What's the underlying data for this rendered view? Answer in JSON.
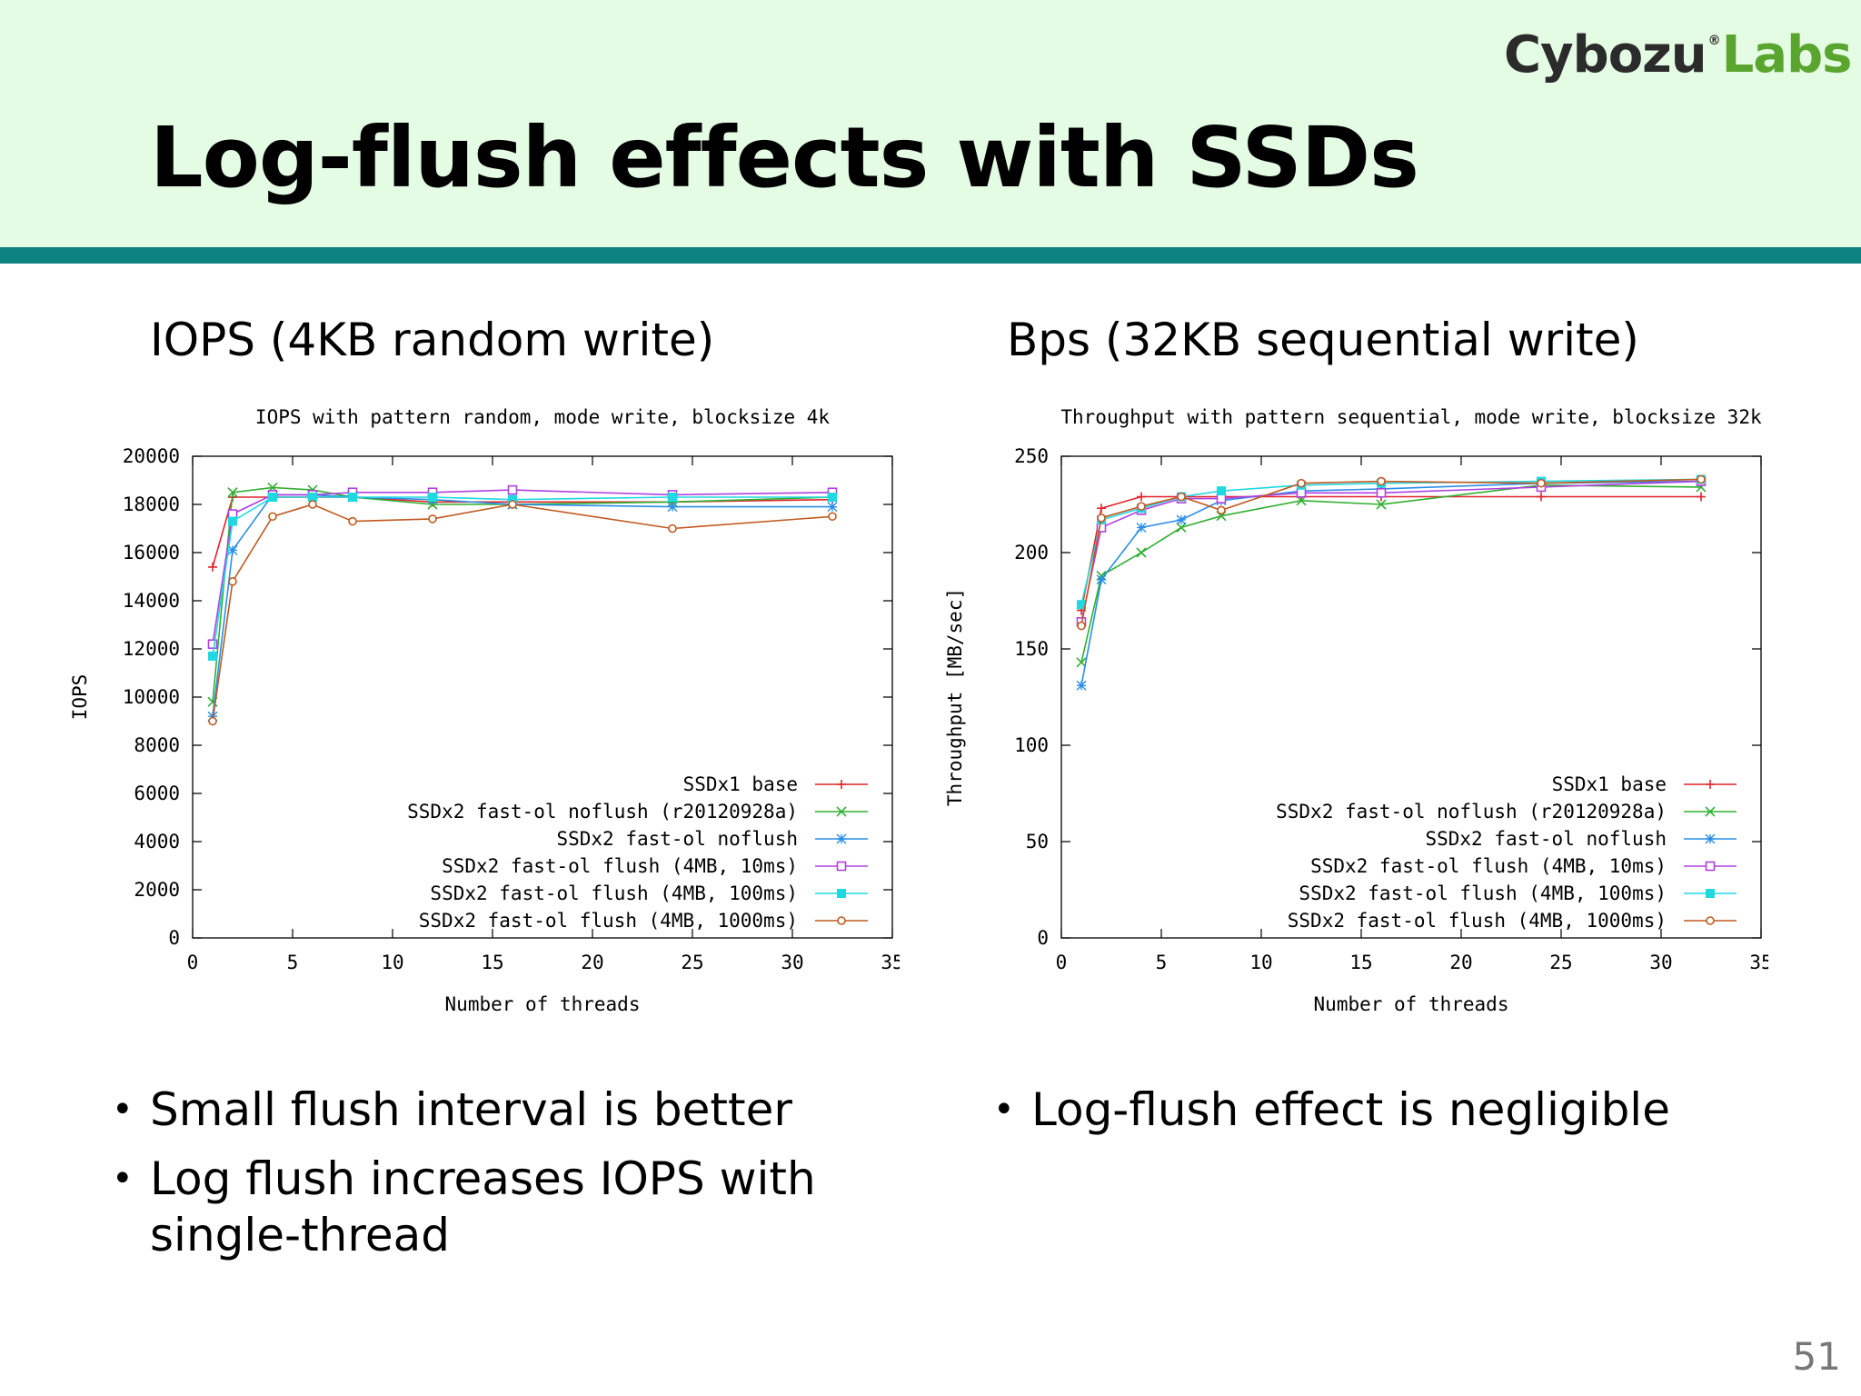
{
  "slide": {
    "title": "Log-flush effects with SSDs",
    "logo_part1": "Cybozu",
    "logo_mark": "®",
    "logo_part2": "Labs",
    "page_number": "51",
    "colors": {
      "header_bg": "#e4fbe4",
      "rule": "#0e8282",
      "logo_dark": "#2b2b2b",
      "logo_green": "#5aa52d"
    }
  },
  "left": {
    "subtitle": "IOPS (4KB random write)",
    "bullets": [
      "Small flush interval is better",
      "Log flush increases IOPS with single-thread"
    ]
  },
  "right": {
    "subtitle": "Bps (32KB sequential write)",
    "bullets": [
      "Log-flush effect is negligible"
    ]
  },
  "chart_data": [
    {
      "type": "line",
      "title": "IOPS with pattern random, mode write, blocksize 4k",
      "xlabel": "Number of threads",
      "ylabel": "IOPS",
      "xlim": [
        0,
        35
      ],
      "ylim": [
        0,
        20000
      ],
      "xticks": [
        0,
        5,
        10,
        15,
        20,
        25,
        30,
        35
      ],
      "yticks": [
        0,
        2000,
        4000,
        6000,
        8000,
        10000,
        12000,
        14000,
        16000,
        18000,
        20000
      ],
      "legend_position": "bottom-right",
      "grid": false,
      "series": [
        {
          "name": "SSDx1 base",
          "color": "#e0242c",
          "marker": "plus",
          "x": [
            1,
            2,
            4,
            6,
            8,
            12,
            16,
            24,
            32
          ],
          "y": [
            15400,
            18300,
            18300,
            18300,
            18300,
            18100,
            18100,
            18100,
            18200
          ]
        },
        {
          "name": "SSDx2 fast-ol noflush (r20120928a)",
          "color": "#30b030",
          "marker": "x",
          "x": [
            1,
            2,
            4,
            6,
            8,
            12,
            16,
            24,
            32
          ],
          "y": [
            9800,
            18500,
            18700,
            18600,
            18300,
            18000,
            18000,
            18100,
            18300
          ]
        },
        {
          "name": "SSDx2 fast-ol noflush",
          "color": "#2a8ee8",
          "marker": "star",
          "x": [
            1,
            2,
            4,
            6,
            8,
            12,
            16,
            24,
            32
          ],
          "y": [
            9200,
            16100,
            18400,
            18400,
            18300,
            18200,
            18000,
            17900,
            17900
          ]
        },
        {
          "name": "SSDx2 fast-ol flush (4MB, 10ms)",
          "color": "#b040e0",
          "marker": "open-square",
          "x": [
            1,
            2,
            4,
            6,
            8,
            12,
            16,
            24,
            32
          ],
          "y": [
            12200,
            17600,
            18400,
            18400,
            18500,
            18500,
            18600,
            18400,
            18500
          ]
        },
        {
          "name": "SSDx2 fast-ol flush (4MB, 100ms)",
          "color": "#20d8e0",
          "marker": "filled-square",
          "x": [
            1,
            2,
            4,
            6,
            8,
            12,
            16,
            24,
            32
          ],
          "y": [
            11700,
            17300,
            18300,
            18300,
            18300,
            18300,
            18200,
            18300,
            18300
          ]
        },
        {
          "name": "SSDx2 fast-ol flush (4MB, 1000ms)",
          "color": "#c05a20",
          "marker": "open-circle",
          "x": [
            1,
            2,
            4,
            6,
            8,
            12,
            16,
            24,
            32
          ],
          "y": [
            9000,
            14800,
            17500,
            18000,
            17300,
            17400,
            18000,
            17000,
            17500
          ]
        }
      ]
    },
    {
      "type": "line",
      "title": "Throughput with pattern sequential, mode write, blocksize 32k",
      "xlabel": "Number of threads",
      "ylabel": "Throughput [MB/sec]",
      "xlim": [
        0,
        35
      ],
      "ylim": [
        0,
        250
      ],
      "xticks": [
        0,
        5,
        10,
        15,
        20,
        25,
        30,
        35
      ],
      "yticks": [
        0,
        50,
        100,
        150,
        200,
        250
      ],
      "legend_position": "bottom-right",
      "grid": false,
      "series": [
        {
          "name": "SSDx1 base",
          "color": "#e0242c",
          "marker": "plus",
          "x": [
            1,
            2,
            4,
            6,
            8,
            12,
            16,
            24,
            32
          ],
          "y": [
            170,
            223,
            229,
            229,
            229,
            229,
            229,
            229,
            229
          ]
        },
        {
          "name": "SSDx2 fast-ol noflush (r20120928a)",
          "color": "#30b030",
          "marker": "x",
          "x": [
            1,
            2,
            4,
            6,
            8,
            12,
            16,
            24,
            32
          ],
          "y": [
            143,
            188,
            200,
            213,
            219,
            227,
            225,
            235,
            234
          ]
        },
        {
          "name": "SSDx2 fast-ol noflush",
          "color": "#2a8ee8",
          "marker": "star",
          "x": [
            1,
            2,
            4,
            6,
            8,
            12,
            16,
            24,
            32
          ],
          "y": [
            131,
            186,
            213,
            217,
            227,
            232,
            233,
            236,
            237
          ]
        },
        {
          "name": "SSDx2 fast-ol flush (4MB, 10ms)",
          "color": "#b040e0",
          "marker": "open-square",
          "x": [
            1,
            2,
            4,
            6,
            8,
            12,
            16,
            24,
            32
          ],
          "y": [
            164,
            213,
            222,
            228,
            228,
            231,
            231,
            234,
            237
          ]
        },
        {
          "name": "SSDx2 fast-ol flush (4MB, 100ms)",
          "color": "#20d8e0",
          "marker": "filled-square",
          "x": [
            1,
            2,
            4,
            6,
            8,
            12,
            16,
            24,
            32
          ],
          "y": [
            173,
            217,
            223,
            229,
            232,
            235,
            236,
            237,
            238
          ]
        },
        {
          "name": "SSDx2 fast-ol flush (4MB, 1000ms)",
          "color": "#c05a20",
          "marker": "open-circle",
          "x": [
            1,
            2,
            4,
            6,
            8,
            12,
            16,
            24,
            32
          ],
          "y": [
            162,
            218,
            224,
            229,
            222,
            236,
            237,
            236,
            238
          ]
        }
      ]
    }
  ]
}
